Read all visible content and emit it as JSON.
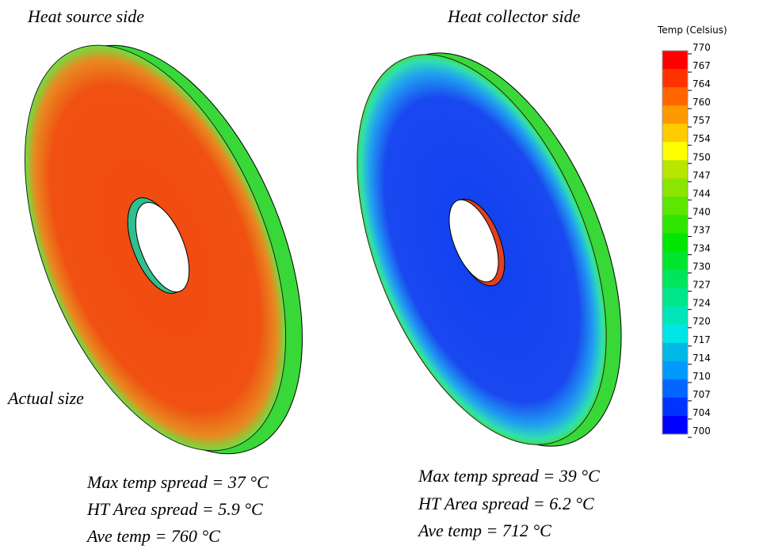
{
  "panels": [
    {
      "title": "Heat source side",
      "note": "Actual size",
      "stats": [
        "Max temp spread = 37 °C",
        "HT Area spread = 5.9 °C",
        "Ave temp = 760 °C"
      ]
    },
    {
      "title": "Heat collector side",
      "stats": [
        "Max temp spread = 39 °C",
        "HT Area spread = 6.2 °C",
        "Ave temp = 712 °C"
      ]
    }
  ],
  "colorbar": {
    "title": "Temp (Celsius)",
    "ticks": [
      770,
      767,
      764,
      760,
      757,
      754,
      750,
      747,
      744,
      740,
      737,
      734,
      730,
      727,
      724,
      720,
      717,
      714,
      710,
      707,
      704,
      700
    ]
  }
}
